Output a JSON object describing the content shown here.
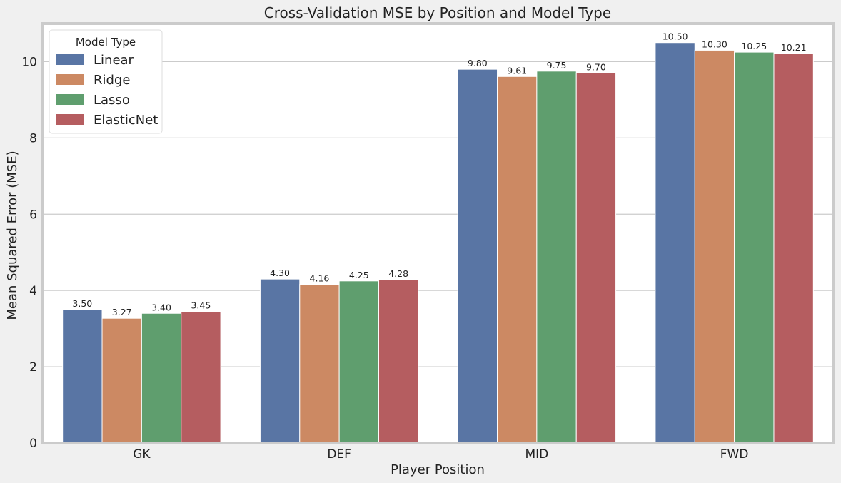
{
  "chart_data": {
    "type": "bar",
    "title": "Cross-Validation MSE by Position and Model Type",
    "xlabel": "Player Position",
    "ylabel": "Mean Squared Error (MSE)",
    "categories": [
      "GK",
      "DEF",
      "MID",
      "FWD"
    ],
    "ylim": [
      0,
      11
    ],
    "yticks": [
      0,
      2,
      4,
      6,
      8,
      10
    ],
    "grid": true,
    "legend": {
      "title": "Model Type",
      "position": "top-left"
    },
    "series": [
      {
        "name": "Linear",
        "color": "#5975a4",
        "values": [
          3.5,
          4.3,
          9.8,
          10.5
        ],
        "labels": [
          "3.50",
          "4.30",
          "9.80",
          "10.50"
        ]
      },
      {
        "name": "Ridge",
        "color": "#cc8963",
        "values": [
          3.27,
          4.16,
          9.61,
          10.3
        ],
        "labels": [
          "3.27",
          "4.16",
          "9.61",
          "10.30"
        ]
      },
      {
        "name": "Lasso",
        "color": "#5f9e6e",
        "values": [
          3.4,
          4.25,
          9.75,
          10.25
        ],
        "labels": [
          "3.40",
          "4.25",
          "9.75",
          "10.25"
        ]
      },
      {
        "name": "ElasticNet",
        "color": "#b55d60",
        "values": [
          3.45,
          4.28,
          9.7,
          10.21
        ],
        "labels": [
          "3.45",
          "4.28",
          "9.70",
          "10.21"
        ]
      }
    ]
  }
}
